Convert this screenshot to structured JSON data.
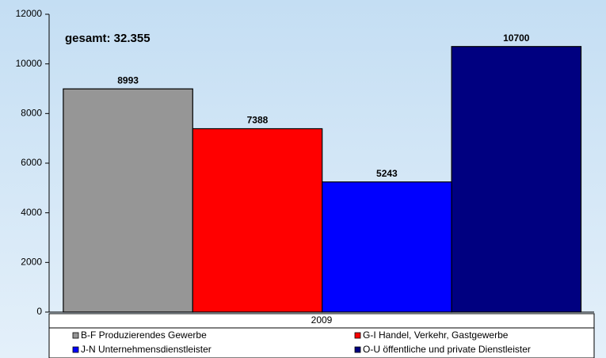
{
  "chart_data": {
    "type": "bar",
    "annotation": "gesamt: 32.355",
    "categories": [
      "2009"
    ],
    "series": [
      {
        "name": "B-F Produzierendes Gewerbe",
        "color": "#969696",
        "values": [
          8993
        ]
      },
      {
        "name": "G-I Handel, Verkehr, Gastgewerbe",
        "color": "#ff0000",
        "values": [
          7388
        ]
      },
      {
        "name": "J-N Unternehmensdienstleister",
        "color": "#0000ff",
        "values": [
          5243
        ]
      },
      {
        "name": "O-U öffentliche und private Dienstleister",
        "color": "#000080",
        "values": [
          10700
        ]
      }
    ],
    "ylim": [
      0,
      12000
    ],
    "yticks": [
      0,
      2000,
      4000,
      6000,
      8000,
      10000,
      12000
    ]
  }
}
